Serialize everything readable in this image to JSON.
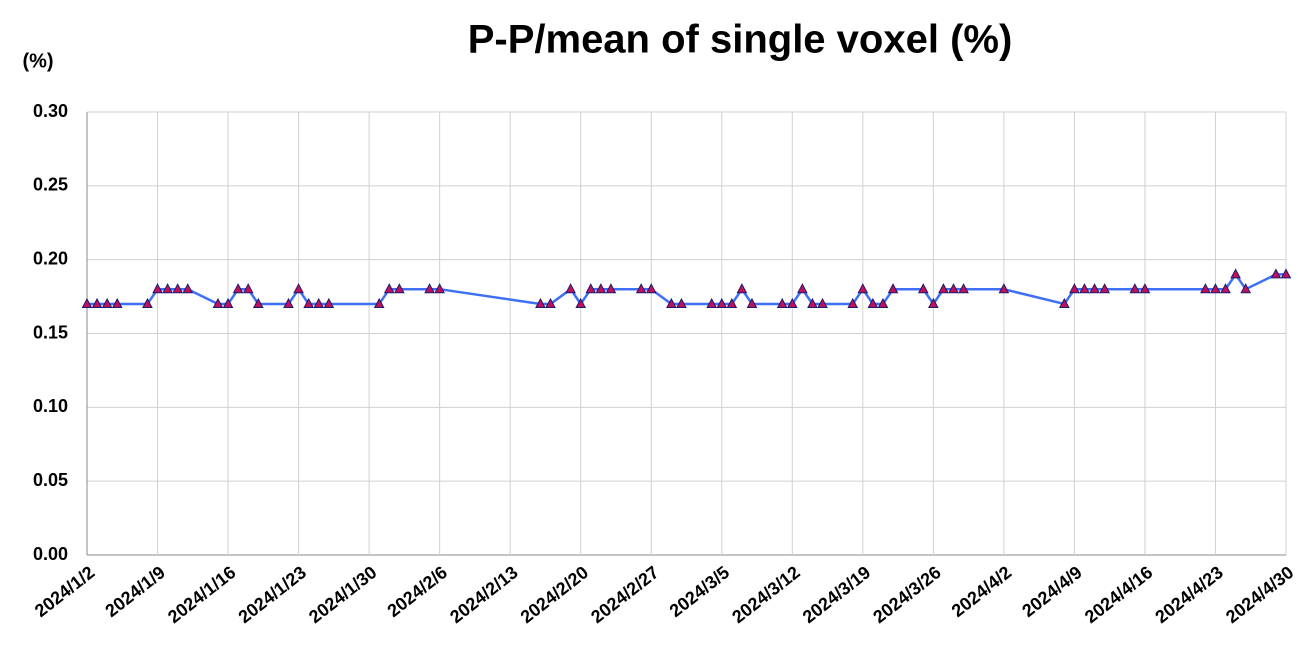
{
  "chart_data": {
    "type": "line",
    "title": "P-P/mean of single voxel (%)",
    "y_label": "(%)",
    "x": [
      "2024/1/2",
      "2024/1/3",
      "2024/1/4",
      "2024/1/5",
      "2024/1/8",
      "2024/1/9",
      "2024/1/10",
      "2024/1/11",
      "2024/1/12",
      "2024/1/15",
      "2024/1/16",
      "2024/1/17",
      "2024/1/18",
      "2024/1/19",
      "2024/1/22",
      "2024/1/23",
      "2024/1/24",
      "2024/1/25",
      "2024/1/26",
      "2024/1/31",
      "2024/2/1",
      "2024/2/2",
      "2024/2/5",
      "2024/2/6",
      "2024/2/16",
      "2024/2/17",
      "2024/2/19",
      "2024/2/20",
      "2024/2/21",
      "2024/2/22",
      "2024/2/23",
      "2024/2/26",
      "2024/2/27",
      "2024/2/29",
      "2024/3/1",
      "2024/3/4",
      "2024/3/5",
      "2024/3/6",
      "2024/3/7",
      "2024/3/8",
      "2024/3/11",
      "2024/3/12",
      "2024/3/13",
      "2024/3/14",
      "2024/3/15",
      "2024/3/18",
      "2024/3/19",
      "2024/3/20",
      "2024/3/21",
      "2024/3/22",
      "2024/3/25",
      "2024/3/26",
      "2024/3/27",
      "2024/3/28",
      "2024/3/29",
      "2024/4/2",
      "2024/4/8",
      "2024/4/9",
      "2024/4/10",
      "2024/4/11",
      "2024/4/12",
      "2024/4/15",
      "2024/4/16",
      "2024/4/22",
      "2024/4/23",
      "2024/4/24",
      "2024/4/25",
      "2024/4/26",
      "2024/4/29",
      "2024/4/30"
    ],
    "values": [
      0.17,
      0.17,
      0.17,
      0.17,
      0.17,
      0.18,
      0.18,
      0.18,
      0.18,
      0.17,
      0.17,
      0.18,
      0.18,
      0.17,
      0.17,
      0.18,
      0.17,
      0.17,
      0.17,
      0.17,
      0.18,
      0.18,
      0.18,
      0.18,
      0.17,
      0.17,
      0.18,
      0.17,
      0.18,
      0.18,
      0.18,
      0.18,
      0.18,
      0.17,
      0.17,
      0.17,
      0.17,
      0.17,
      0.18,
      0.17,
      0.17,
      0.17,
      0.18,
      0.17,
      0.17,
      0.17,
      0.18,
      0.17,
      0.17,
      0.18,
      0.18,
      0.17,
      0.18,
      0.18,
      0.18,
      0.18,
      0.17,
      0.18,
      0.18,
      0.18,
      0.18,
      0.18,
      0.18,
      0.18,
      0.18,
      0.18,
      0.19,
      0.18,
      0.19,
      0.19
    ],
    "color": "#3f6ff5",
    "marker_color": "#c0105a",
    "xlim": [
      "2024/1/2",
      "2024/4/30"
    ],
    "xticks": [
      "2024/1/2",
      "2024/1/9",
      "2024/1/16",
      "2024/1/23",
      "2024/1/30",
      "2024/2/6",
      "2024/2/13",
      "2024/2/20",
      "2024/2/27",
      "2024/3/5",
      "2024/3/12",
      "2024/3/19",
      "2024/3/26",
      "2024/4/2",
      "2024/4/9",
      "2024/4/16",
      "2024/4/23",
      "2024/4/30"
    ],
    "ylim": [
      0,
      0.3
    ],
    "yticks": [
      {
        "value": 0,
        "label": "0.00"
      },
      0.05,
      {
        "value": 0.1,
        "label": "0.10"
      },
      0.15,
      {
        "value": 0.2,
        "label": "0.20"
      },
      0.25,
      {
        "value": 0.3,
        "label": "0.30"
      }
    ],
    "grid": true
  }
}
